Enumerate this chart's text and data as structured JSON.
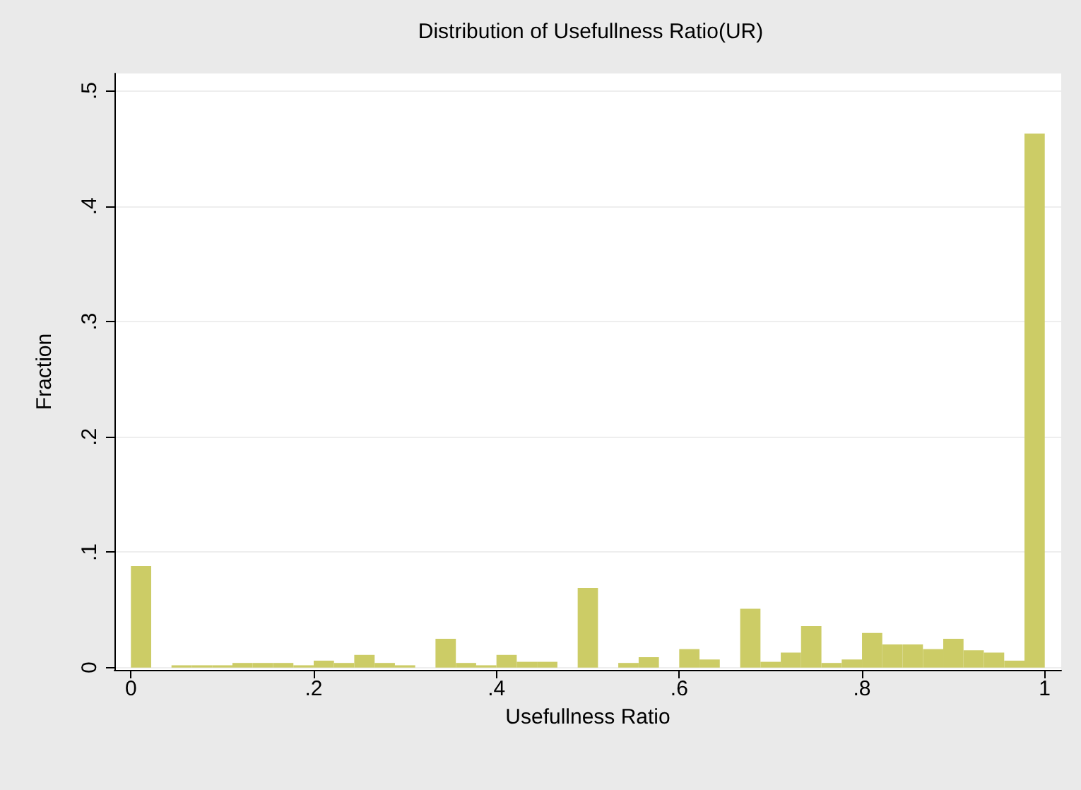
{
  "chart_data": {
    "type": "histogram",
    "title": "Distribution of Usefullness Ratio(UR)",
    "xlabel": "Usefullness Ratio",
    "ylabel": "Fraction",
    "color": "#cccc66",
    "bins": [
      0,
      0.0222,
      0.0444,
      0.0667,
      0.0889,
      0.1111,
      0.1333,
      0.1556,
      0.1778,
      0.2,
      0.2222,
      0.2444,
      0.2667,
      0.2889,
      0.3111,
      0.3333,
      0.3556,
      0.3778,
      0.4,
      0.4222,
      0.4444,
      0.4667,
      0.4889,
      0.5111,
      0.5333,
      0.5556,
      0.5778,
      0.6,
      0.6222,
      0.6444,
      0.6667,
      0.6889,
      0.7111,
      0.7333,
      0.7556,
      0.7778,
      0.8,
      0.8222,
      0.8444,
      0.8667,
      0.8889,
      0.9111,
      0.9333,
      0.9556,
      0.9778,
      1
    ],
    "values": [
      0.088,
      0,
      0.002,
      0.002,
      0.002,
      0.004,
      0.004,
      0.004,
      0.002,
      0.006,
      0.004,
      0.011,
      0.004,
      0.002,
      0,
      0.025,
      0.004,
      0.002,
      0.011,
      0.005,
      0.005,
      0,
      0.069,
      0,
      0.004,
      0.009,
      0,
      0.016,
      0.007,
      0,
      0.051,
      0.005,
      0.013,
      0.036,
      0.004,
      0.007,
      0.03,
      0.02,
      0.02,
      0.016,
      0.025,
      0.015,
      0.013,
      0.006,
      0.463
    ],
    "xlim": [
      -0.018,
      1.018
    ],
    "ylim": [
      -0.002,
      0.515
    ],
    "xticks": [
      0,
      {
        "value": 0.2,
        "label": ".2"
      },
      {
        "value": 0.4,
        "label": ".4"
      },
      {
        "value": 0.6,
        "label": ".6"
      },
      {
        "value": 0.8,
        "label": ".8"
      },
      1
    ],
    "yticks": [
      0,
      {
        "value": 0.1,
        "label": ".1"
      },
      {
        "value": 0.2,
        "label": ".2"
      },
      {
        "value": 0.3,
        "label": ".3"
      },
      {
        "value": 0.4,
        "label": ".4"
      },
      {
        "value": 0.5,
        "label": ".5"
      }
    ],
    "grid": "y"
  }
}
